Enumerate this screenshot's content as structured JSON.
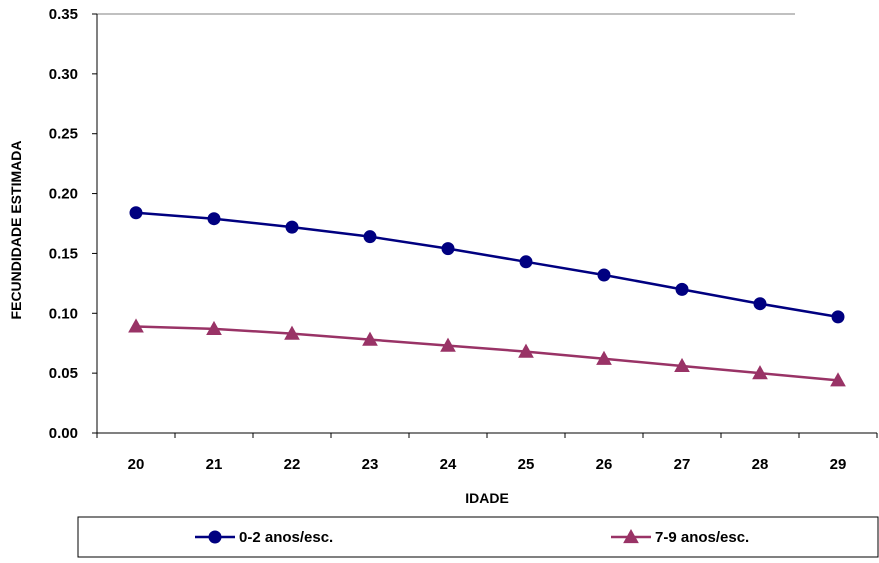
{
  "chart_data": {
    "type": "line",
    "title": "",
    "xlabel": "IDADE",
    "ylabel": "FECUNDIDADE ESTIMADA",
    "categories": [
      "20",
      "21",
      "22",
      "23",
      "24",
      "25",
      "26",
      "27",
      "28",
      "29"
    ],
    "y_ticks": [
      "0.00",
      "0.05",
      "0.10",
      "0.15",
      "0.20",
      "0.25",
      "0.30",
      "0.35"
    ],
    "ylim": [
      0,
      0.35
    ],
    "grid": false,
    "legend_position": "bottom",
    "series": [
      {
        "name": "0-2 anos/esc.",
        "color": "#000080",
        "marker": "circle",
        "values": [
          0.184,
          0.179,
          0.172,
          0.164,
          0.154,
          0.143,
          0.132,
          0.12,
          0.108,
          0.097
        ]
      },
      {
        "name": "7-9 anos/esc.",
        "color": "#993366",
        "marker": "triangle",
        "values": [
          0.089,
          0.087,
          0.083,
          0.078,
          0.073,
          0.068,
          0.062,
          0.056,
          0.05,
          0.044
        ]
      }
    ]
  }
}
